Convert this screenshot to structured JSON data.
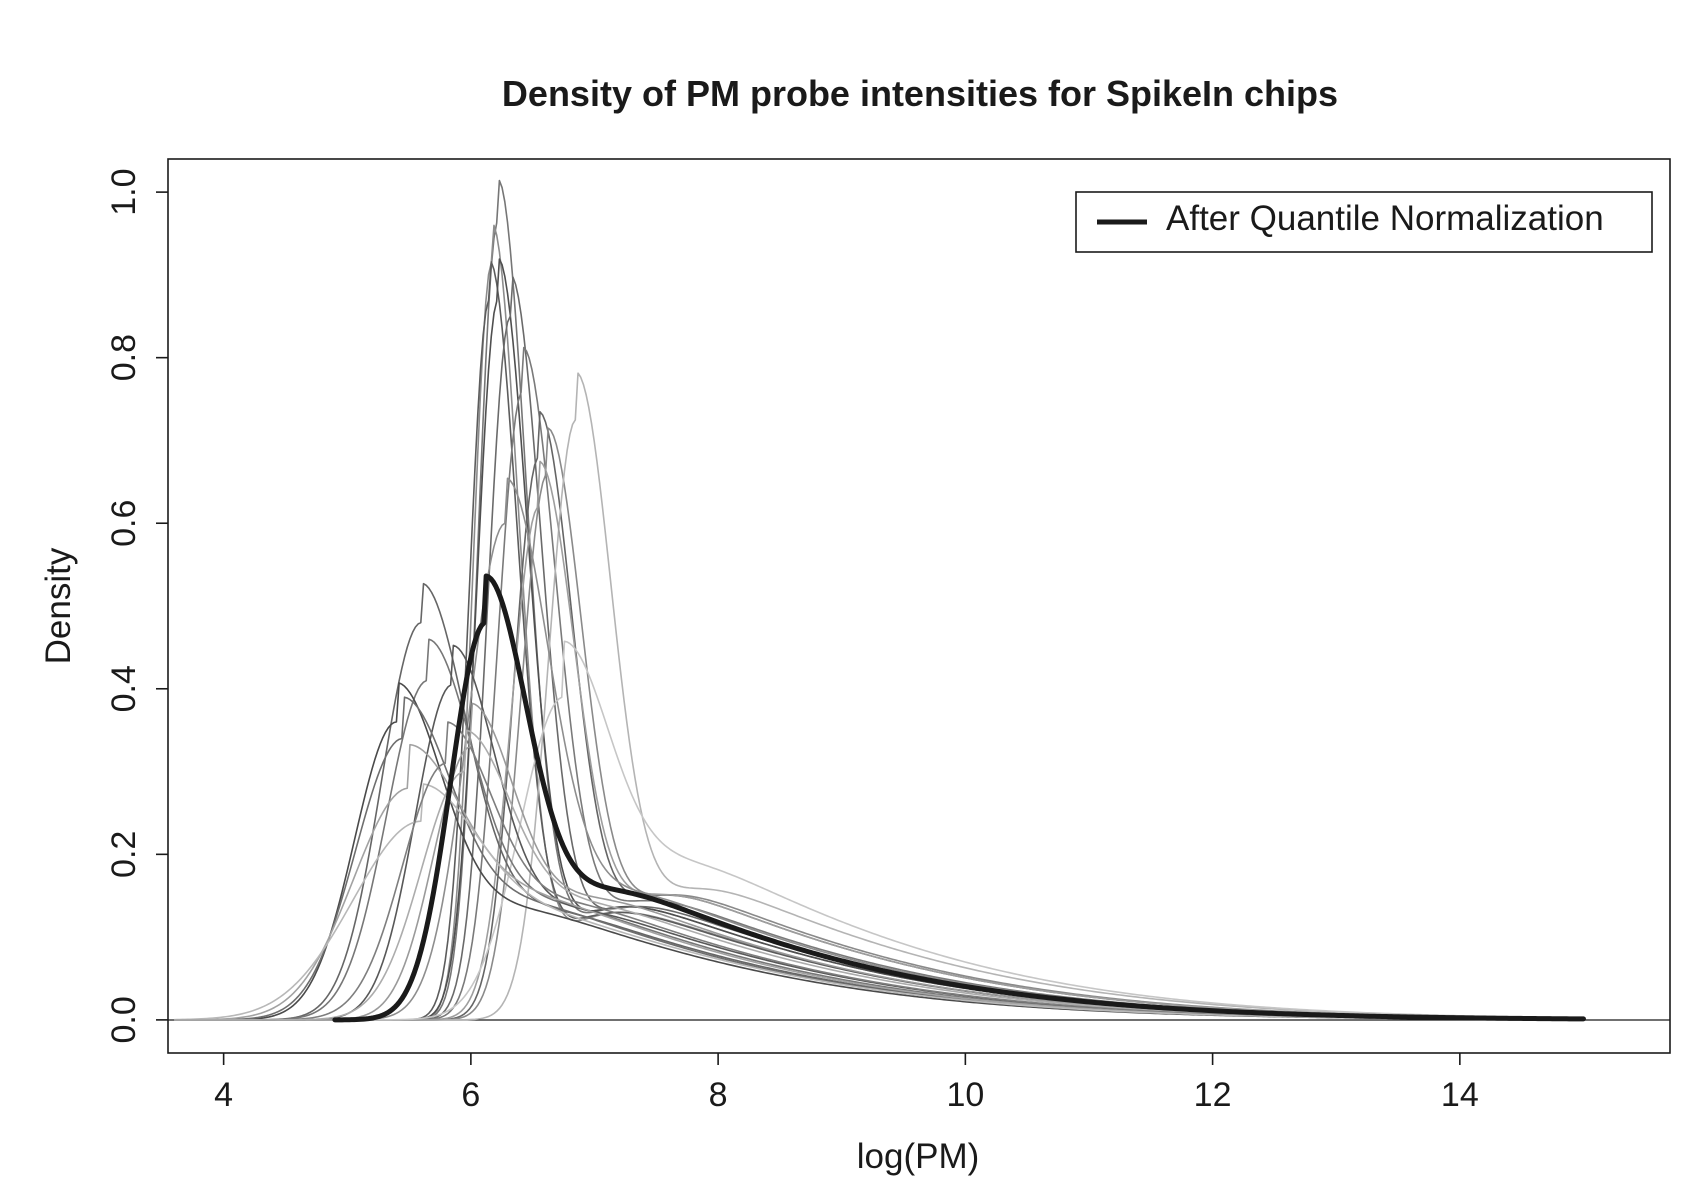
{
  "chart_data": {
    "type": "line",
    "title": "Density of PM probe intensities for SpikeIn chips",
    "xlabel": "log(PM)",
    "ylabel": "Density",
    "xlim": [
      3.55,
      15.7
    ],
    "ylim": [
      -0.04,
      1.04
    ],
    "xticks": [
      4,
      6,
      8,
      10,
      12,
      14
    ],
    "yticks": [
      0.0,
      0.2,
      0.4,
      0.6,
      0.8,
      1.0
    ],
    "xtick_labels": [
      "4",
      "6",
      "8",
      "10",
      "12",
      "14"
    ],
    "ytick_labels": [
      "0.0",
      "0.2",
      "0.4",
      "0.6",
      "0.8",
      "1.0"
    ],
    "grid": false,
    "baseline": 0,
    "legend": {
      "position": "top-right",
      "entries": [
        "After Quantile Normalization"
      ]
    },
    "x_range_grey": [
      3.6,
      15.0
    ],
    "x_range_normalized": [
      4.9,
      15.0
    ],
    "series": [
      {
        "peak_x": 6.22,
        "peak_y": 0.965,
        "spread": 0.16,
        "tail": 0.2,
        "color": "#767676"
      },
      {
        "peak_x": 6.17,
        "peak_y": 0.915,
        "spread": 0.15,
        "tail": 0.19,
        "color": "#8c8c8c"
      },
      {
        "peak_x": 6.15,
        "peak_y": 0.87,
        "spread": 0.16,
        "tail": 0.19,
        "color": "#5c5c5c"
      },
      {
        "peak_x": 6.22,
        "peak_y": 0.87,
        "spread": 0.17,
        "tail": 0.2,
        "color": "#4f4f4f"
      },
      {
        "peak_x": 6.32,
        "peak_y": 0.85,
        "spread": 0.18,
        "tail": 0.2,
        "color": "#6a6a6a"
      },
      {
        "peak_x": 6.42,
        "peak_y": 0.76,
        "spread": 0.2,
        "tail": 0.21,
        "color": "#7a7a7a"
      },
      {
        "peak_x": 6.55,
        "peak_y": 0.68,
        "spread": 0.2,
        "tail": 0.22,
        "color": "#656565"
      },
      {
        "peak_x": 6.62,
        "peak_y": 0.66,
        "spread": 0.21,
        "tail": 0.22,
        "color": "#8a8a8a"
      },
      {
        "peak_x": 6.85,
        "peak_y": 0.725,
        "spread": 0.22,
        "tail": 0.23,
        "color": "#b4b4b4"
      },
      {
        "peak_x": 6.55,
        "peak_y": 0.62,
        "spread": 0.22,
        "tail": 0.22,
        "color": "#9e9e9e"
      },
      {
        "peak_x": 6.28,
        "peak_y": 0.6,
        "spread": 0.3,
        "tail": 0.22,
        "color": "#8e8e8e"
      },
      {
        "peak_x": 6.75,
        "peak_y": 0.39,
        "spread": 0.35,
        "tail": 0.27,
        "color": "#c6c6c6"
      },
      {
        "peak_x": 5.6,
        "peak_y": 0.48,
        "spread": 0.32,
        "tail": 0.19,
        "color": "#666666"
      },
      {
        "peak_x": 5.65,
        "peak_y": 0.41,
        "spread": 0.33,
        "tail": 0.2,
        "color": "#777777"
      },
      {
        "peak_x": 5.85,
        "peak_y": 0.405,
        "spread": 0.3,
        "tail": 0.19,
        "color": "#585858"
      },
      {
        "peak_x": 5.4,
        "peak_y": 0.36,
        "spread": 0.34,
        "tail": 0.19,
        "color": "#4a4a4a"
      },
      {
        "peak_x": 5.45,
        "peak_y": 0.34,
        "spread": 0.38,
        "tail": 0.2,
        "color": "#6e6e6e"
      },
      {
        "peak_x": 5.5,
        "peak_y": 0.28,
        "spread": 0.45,
        "tail": 0.21,
        "color": "#a2a2a2"
      },
      {
        "peak_x": 5.6,
        "peak_y": 0.24,
        "spread": 0.55,
        "tail": 0.21,
        "color": "#b8b8b8"
      },
      {
        "peak_x": 5.8,
        "peak_y": 0.31,
        "spread": 0.35,
        "tail": 0.2,
        "color": "#7e7e7e"
      },
      {
        "peak_x": 6.0,
        "peak_y": 0.33,
        "spread": 0.3,
        "tail": 0.21,
        "color": "#9a9a9a"
      },
      {
        "peak_x": 5.95,
        "peak_y": 0.3,
        "spread": 0.35,
        "tail": 0.2,
        "color": "#acacac"
      }
    ],
    "normalized_series": {
      "name": "After Quantile Normalization",
      "peak_x": 6.12,
      "peak_y": 0.48,
      "spread": 0.28,
      "tail": 0.225,
      "color": "#1a1a1a"
    }
  }
}
